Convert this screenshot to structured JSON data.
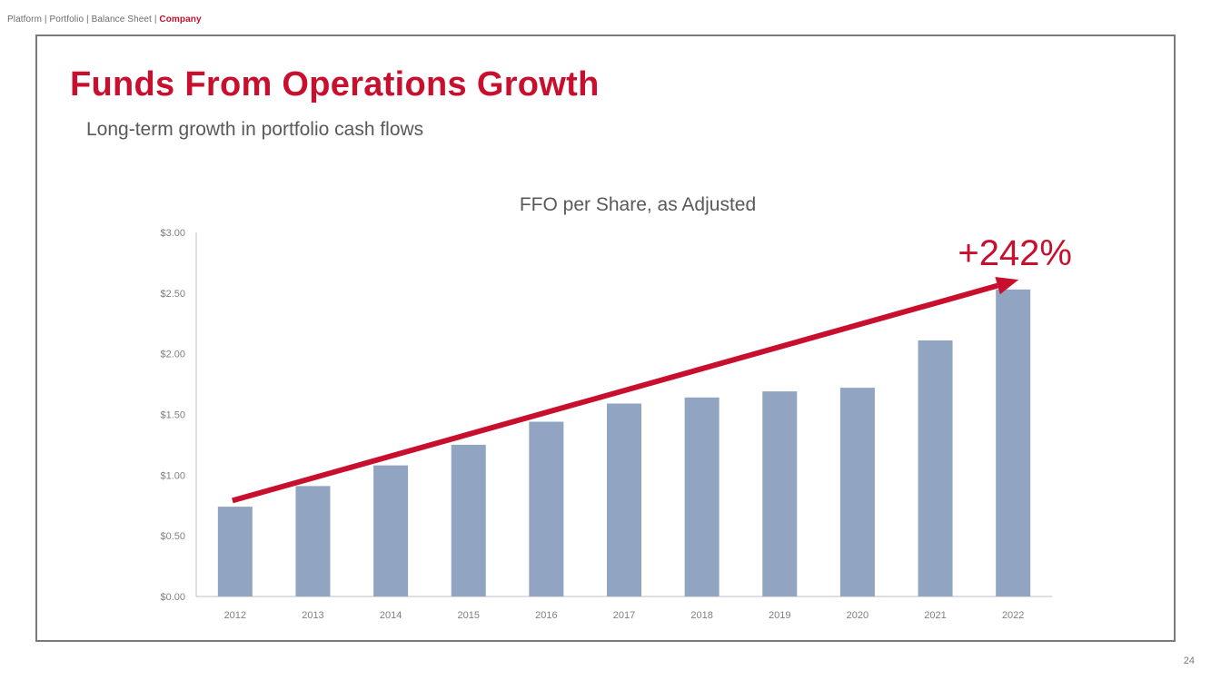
{
  "breadcrumb": {
    "items": [
      "Platform",
      "Portfolio",
      "Balance Sheet"
    ],
    "separator": " | ",
    "active": "Company"
  },
  "slide": {
    "title": "Funds From Operations Growth",
    "subtitle": "Long-term growth in portfolio cash flows",
    "page_number": "24"
  },
  "colors": {
    "accent": "#c8102e",
    "bar": "#91a4c1",
    "text": "#595959",
    "axis": "#bfbfbf"
  },
  "chart_data": {
    "type": "bar",
    "title": "FFO per Share, as Adjusted",
    "categories": [
      "2012",
      "2013",
      "2014",
      "2015",
      "2016",
      "2017",
      "2018",
      "2019",
      "2020",
      "2021",
      "2022"
    ],
    "values": [
      0.74,
      0.91,
      1.08,
      1.25,
      1.44,
      1.59,
      1.64,
      1.69,
      1.72,
      2.11,
      2.53
    ],
    "ylim": [
      0,
      3
    ],
    "yticks": [
      0,
      0.5,
      1,
      1.5,
      2,
      2.5,
      3
    ],
    "ytick_labels": [
      "$0.00",
      "$0.50",
      "$1.00",
      "$1.50",
      "$2.00",
      "$2.50",
      "$3.00"
    ],
    "xlabel": "",
    "ylabel": "",
    "grid": false,
    "annotation": {
      "text": "+242%",
      "arrow_from": {
        "category": "2012",
        "value": 0.79
      },
      "arrow_to": {
        "category": "2022",
        "value": 2.61
      }
    }
  }
}
